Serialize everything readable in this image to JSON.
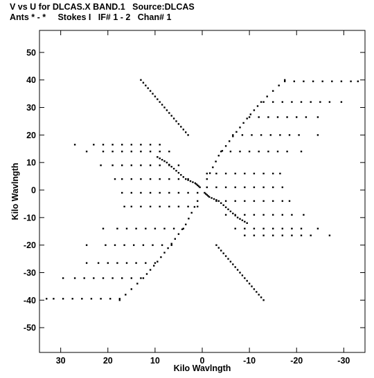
{
  "header": {
    "line1": "V vs U for DLCAS.X BAND.1   Source:DLCAS",
    "line2": "Ants * - *     Stokes I   IF# 1 - 2   Chan# 1"
  },
  "chart_data": {
    "type": "scatter",
    "xlabel": "Kilo Wavlngth",
    "ylabel": "Kilo Wavlngth",
    "xlim": [
      34.5,
      -34.5
    ],
    "ylim": [
      -59,
      58
    ],
    "x_reversed": true,
    "xticks": [
      30,
      20,
      10,
      0,
      -10,
      -20,
      -30
    ],
    "yticks": [
      50,
      40,
      30,
      20,
      10,
      0,
      -10,
      -20,
      -30,
      -40,
      -50
    ],
    "xtick_labels": [
      "30",
      "20",
      "10",
      "0",
      "-10",
      "-20",
      "-30"
    ],
    "ytick_labels": [
      "50",
      "40",
      "30",
      "20",
      "10",
      "0",
      "-10",
      "-20",
      "-30",
      "-40",
      "-50"
    ],
    "grid": false,
    "marker_color": "#000000",
    "point_symmetry": "each baseline point (u,v) also plotted at (-u,-v)",
    "tracks": [
      {
        "v": 39.5,
        "u": [
          -17.5,
          -19.5,
          -21.5,
          -23.5,
          -25.5,
          -27.5,
          -29.5,
          -31.5,
          -33
        ]
      },
      {
        "v": 32.0,
        "u": [
          -13,
          -15,
          -17,
          -19,
          -21,
          -23,
          -25,
          -27,
          -29.5
        ]
      },
      {
        "v": 26.5,
        "u": [
          -10,
          -12,
          -14,
          -16,
          -18,
          -20,
          -22,
          -24.5
        ]
      },
      {
        "v": 20.0,
        "u": [
          -6.5,
          -8.5,
          -10.5,
          -12.5,
          -14.5,
          -16.5,
          -18.5,
          -20.5,
          -24.5
        ]
      },
      {
        "v": 14.0,
        "u": [
          -4,
          -6,
          -8,
          -10,
          -12,
          -14,
          -16,
          -18,
          -21
        ]
      },
      {
        "v": 6.0,
        "u": [
          -1,
          -3,
          -5,
          -7,
          -9,
          -11,
          -13,
          -15,
          -16.5
        ]
      },
      {
        "v": 1.0,
        "u": [
          -1,
          -3,
          -5,
          -7,
          -9,
          -11,
          -13,
          -15,
          -17
        ]
      },
      {
        "v": -4.0,
        "u": [
          -3,
          -5,
          -7,
          -9,
          -11,
          -13,
          -15,
          -17,
          -18.5
        ]
      },
      {
        "v": -9.0,
        "u": [
          -5,
          -7,
          -9,
          -11,
          -13,
          -15,
          -17,
          -19,
          -21.5
        ]
      },
      {
        "v": -14.0,
        "u": [
          -7,
          -9,
          -11,
          -13,
          -15,
          -17,
          -19,
          -21,
          -24.5
        ]
      },
      {
        "v": -16.5,
        "u": [
          -9,
          -11,
          -13,
          -15,
          -17,
          -19,
          -21,
          -23,
          -27
        ]
      }
    ],
    "rays": [
      {
        "u": [
          -17.5,
          -12.5,
          -9.5,
          -6.5,
          -3.5,
          -1
        ],
        "v": [
          40,
          32,
          26,
          19.5,
          12.5,
          4
        ]
      },
      {
        "u": [
          9.5,
          7.5,
          5.5,
          3.5,
          1.5,
          0.5
        ],
        "v": [
          12,
          10,
          7,
          4,
          2.5,
          1
        ]
      },
      {
        "u": [
          13,
          11,
          9,
          7,
          5,
          3
        ],
        "v": [
          40,
          36,
          32,
          28,
          24,
          20
        ]
      }
    ]
  }
}
